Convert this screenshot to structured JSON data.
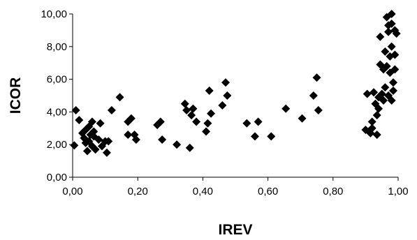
{
  "chart_data": {
    "type": "scatter",
    "title": "",
    "xlabel": "IREV",
    "ylabel": "ICOR",
    "xlim": [
      0,
      1
    ],
    "ylim": [
      0,
      10
    ],
    "grid": false,
    "x_ticks": [
      "0,00",
      "0,20",
      "0,40",
      "0,60",
      "0,80",
      "1,00"
    ],
    "y_ticks": [
      "0,00",
      "2,00",
      "4,00",
      "6,00",
      "8,00",
      "10,00"
    ],
    "marker_color": "#000000",
    "points": [
      [
        0.005,
        1.95
      ],
      [
        0.01,
        4.1
      ],
      [
        0.02,
        3.5
      ],
      [
        0.03,
        2.7
      ],
      [
        0.035,
        2.4
      ],
      [
        0.04,
        2.9
      ],
      [
        0.04,
        2.1
      ],
      [
        0.045,
        1.6
      ],
      [
        0.05,
        3.1
      ],
      [
        0.05,
        2.2
      ],
      [
        0.055,
        2.6
      ],
      [
        0.06,
        1.9
      ],
      [
        0.06,
        3.4
      ],
      [
        0.065,
        2.8
      ],
      [
        0.065,
        2.5
      ],
      [
        0.07,
        1.7
      ],
      [
        0.08,
        2.3
      ],
      [
        0.085,
        3.3
      ],
      [
        0.09,
        1.9
      ],
      [
        0.1,
        2.2
      ],
      [
        0.105,
        1.5
      ],
      [
        0.11,
        2.2
      ],
      [
        0.12,
        4.1
      ],
      [
        0.145,
        4.9
      ],
      [
        0.17,
        3.4
      ],
      [
        0.17,
        2.6
      ],
      [
        0.18,
        3.6
      ],
      [
        0.19,
        2.6
      ],
      [
        0.195,
        2.3
      ],
      [
        0.26,
        3.2
      ],
      [
        0.27,
        3.4
      ],
      [
        0.275,
        2.3
      ],
      [
        0.32,
        2.0
      ],
      [
        0.345,
        4.5
      ],
      [
        0.35,
        4.1
      ],
      [
        0.36,
        1.8
      ],
      [
        0.365,
        3.8
      ],
      [
        0.37,
        4.2
      ],
      [
        0.38,
        3.4
      ],
      [
        0.41,
        2.8
      ],
      [
        0.415,
        3.3
      ],
      [
        0.42,
        5.3
      ],
      [
        0.425,
        3.9
      ],
      [
        0.46,
        4.4
      ],
      [
        0.47,
        5.8
      ],
      [
        0.475,
        5.0
      ],
      [
        0.535,
        3.3
      ],
      [
        0.56,
        2.5
      ],
      [
        0.57,
        3.4
      ],
      [
        0.61,
        2.5
      ],
      [
        0.655,
        4.2
      ],
      [
        0.705,
        3.6
      ],
      [
        0.74,
        5.0
      ],
      [
        0.75,
        6.1
      ],
      [
        0.755,
        4.1
      ],
      [
        0.9,
        2.9
      ],
      [
        0.905,
        5.1
      ],
      [
        0.915,
        2.7
      ],
      [
        0.92,
        3.4
      ],
      [
        0.92,
        3.0
      ],
      [
        0.925,
        5.2
      ],
      [
        0.93,
        4.5
      ],
      [
        0.935,
        3.8
      ],
      [
        0.935,
        2.6
      ],
      [
        0.94,
        4.9
      ],
      [
        0.94,
        4.2
      ],
      [
        0.945,
        8.6
      ],
      [
        0.945,
        6.9
      ],
      [
        0.95,
        5.1
      ],
      [
        0.955,
        6.6
      ],
      [
        0.955,
        4.7
      ],
      [
        0.96,
        5.5
      ],
      [
        0.96,
        7.7
      ],
      [
        0.965,
        6.8
      ],
      [
        0.965,
        9.8
      ],
      [
        0.97,
        9.3
      ],
      [
        0.97,
        8.9
      ],
      [
        0.97,
        5.0
      ],
      [
        0.975,
        7.4
      ],
      [
        0.975,
        6.4
      ],
      [
        0.98,
        10.0
      ],
      [
        0.98,
        9.4
      ],
      [
        0.98,
        8.0
      ],
      [
        0.98,
        4.7
      ],
      [
        0.985,
        5.8
      ],
      [
        0.985,
        5.3
      ],
      [
        0.99,
        9.0
      ],
      [
        0.99,
        7.5
      ],
      [
        0.99,
        6.6
      ],
      [
        0.995,
        8.8
      ]
    ]
  }
}
